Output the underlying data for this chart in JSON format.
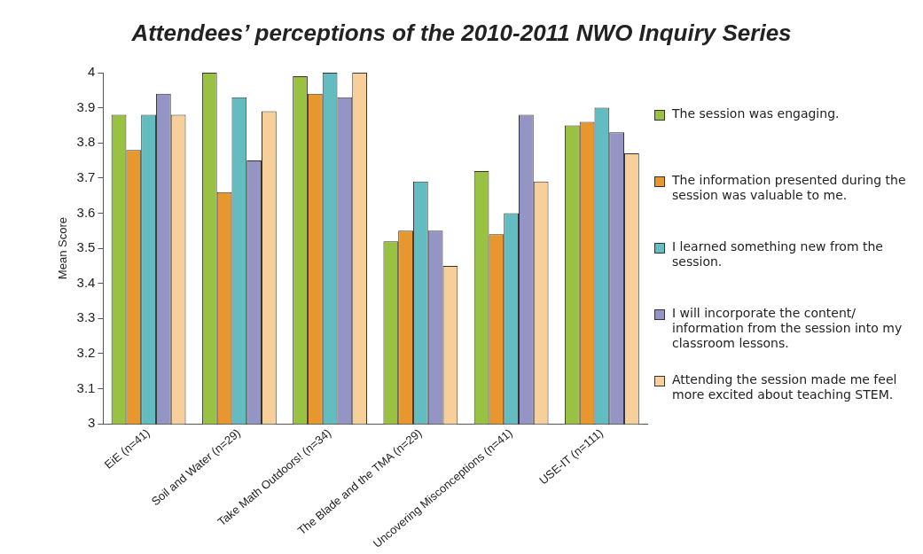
{
  "chart_data": {
    "type": "bar",
    "title": "Attendees’ perceptions of the 2010-2011 NWO Inquiry Series",
    "ylabel": "Mean Score",
    "categories": [
      "EiE (n=41)",
      "Soil and Water (n=29)",
      "Take Math Outdoors! (n=34)",
      "The Blade and the TMA (n=29)",
      "Uncovering Misconceptions (n=41)",
      "USE-IT (n=111)"
    ],
    "series": [
      {
        "name": "The session was engaging.",
        "color": "#99c242",
        "values": [
          3.88,
          4.0,
          3.99,
          3.52,
          3.72,
          3.85
        ]
      },
      {
        "name": "The information presented during the session was valuable to me.",
        "color": "#e8972f",
        "values": [
          3.78,
          3.66,
          3.94,
          3.55,
          3.54,
          3.86
        ]
      },
      {
        "name": "I learned something new from the session.",
        "color": "#63bcc0",
        "values": [
          3.88,
          3.93,
          4.0,
          3.69,
          3.6,
          3.9
        ]
      },
      {
        "name": "I will incorporate the content/ information from the session into my classroom lessons.",
        "color": "#9595c5",
        "values": [
          3.94,
          3.75,
          3.93,
          3.55,
          3.88,
          3.83
        ]
      },
      {
        "name": "Attending the session made me feel more excited about teaching STEM.",
        "color": "#f7cf9b",
        "values": [
          3.88,
          3.89,
          4.0,
          3.45,
          3.69,
          3.77
        ]
      }
    ],
    "ylim": [
      3,
      4
    ],
    "yticks": [
      3,
      3.1,
      3.2,
      3.3,
      3.4,
      3.5,
      3.6,
      3.7,
      3.8,
      3.9,
      4
    ],
    "grid": false,
    "legend": "right"
  }
}
